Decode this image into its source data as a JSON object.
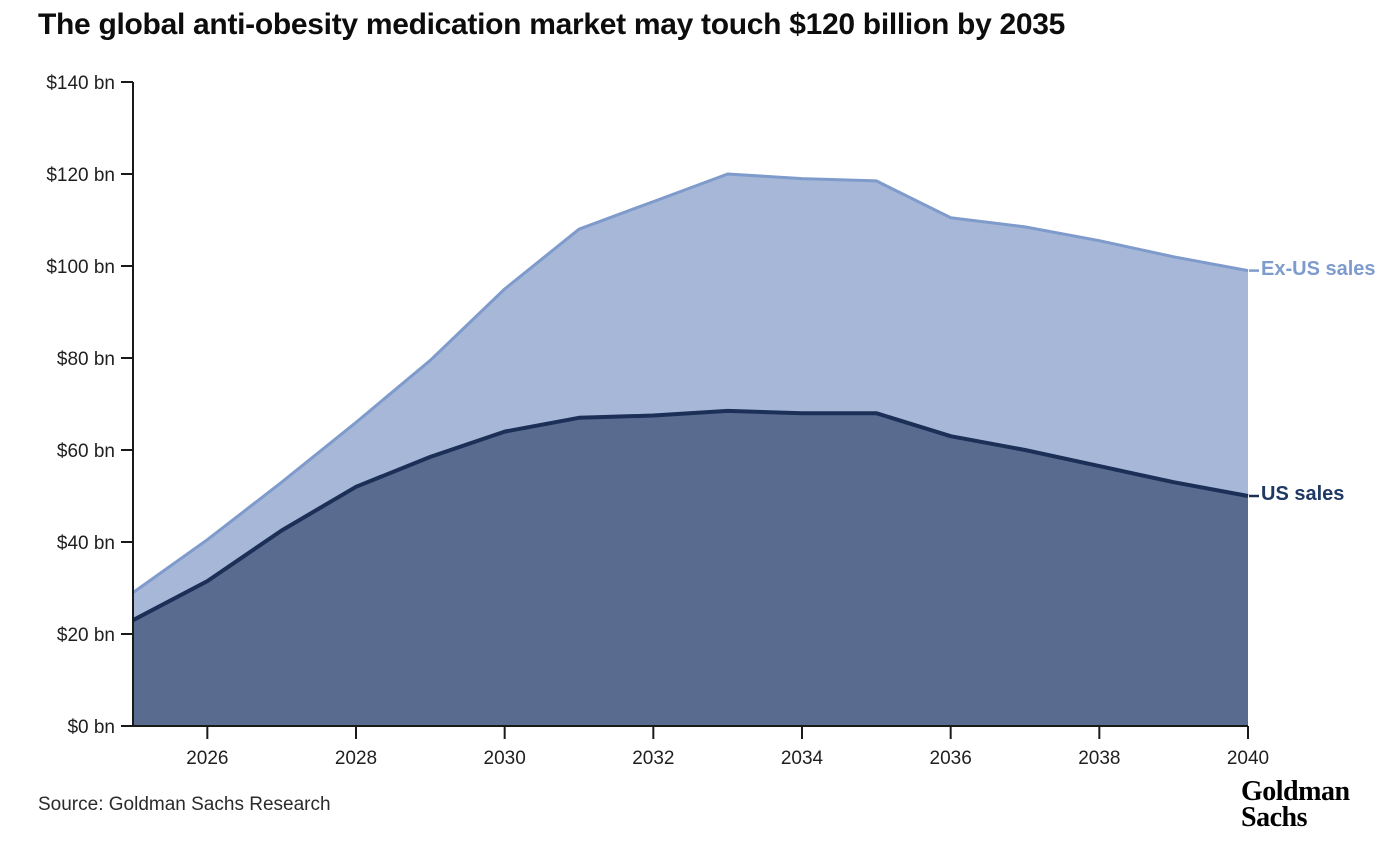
{
  "chart": {
    "title": "The global anti-obesity medication market may touch $120 billion by 2035",
    "source": "Source: Goldman Sachs Research"
  },
  "logo": {
    "line1": "Goldman",
    "line2": "Sachs"
  },
  "chart_data": {
    "type": "area",
    "stacked": true,
    "title": "The global anti-obesity medication market may touch $120 billion by 2035",
    "x": [
      2025,
      2026,
      2027,
      2028,
      2029,
      2030,
      2031,
      2032,
      2033,
      2034,
      2035,
      2036,
      2037,
      2038,
      2039,
      2040
    ],
    "series": [
      {
        "name": "US sales",
        "values": [
          23,
          31.5,
          42.5,
          52,
          58.5,
          64,
          67,
          67.5,
          68.5,
          68,
          68,
          63,
          60,
          56.5,
          53,
          50
        ],
        "fill": "#5a6b90",
        "stroke": "#1b2f57",
        "label_color": "#1f3864"
      },
      {
        "name": "Ex-US sales",
        "values": [
          6,
          9,
          10.5,
          14,
          21,
          31,
          41,
          46.5,
          51.5,
          51,
          50.5,
          47.5,
          48.5,
          49,
          49,
          49
        ],
        "fill": "#a6b7d7",
        "stroke": "#7f9bcb",
        "label_color": "#7d9ccd"
      }
    ],
    "totals": [
      29,
      40.5,
      53,
      66,
      79.5,
      95,
      108,
      114,
      120,
      119,
      118.5,
      110.5,
      108.5,
      105.5,
      102,
      99
    ],
    "ylabel": "",
    "xlabel": "",
    "ylim": [
      0,
      140
    ],
    "xlim": [
      2025,
      2040
    ],
    "y_ticks": [
      0,
      20,
      40,
      60,
      80,
      100,
      120,
      140
    ],
    "y_tick_labels": [
      "$0 bn",
      "$20 bn",
      "$40 bn",
      "$60 bn",
      "$80 bn",
      "$100 bn",
      "$120 bn",
      "$140 bn"
    ],
    "x_tick_values": [
      2026,
      2028,
      2030,
      2032,
      2034,
      2036,
      2038,
      2040
    ],
    "x_tick_labels": [
      "2026",
      "2028",
      "2030",
      "2032",
      "2034",
      "2036",
      "2038",
      "2040"
    ],
    "grid": false,
    "legend_position": "right-edge-labels",
    "axis_color": "#1a1a1a"
  }
}
